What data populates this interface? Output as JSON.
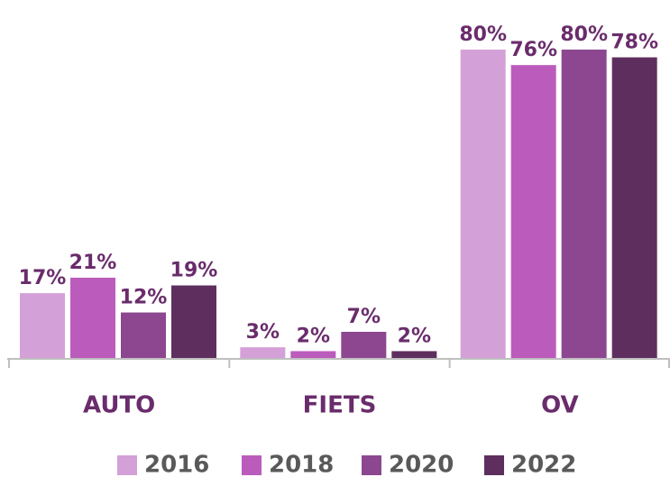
{
  "chart_data": {
    "type": "bar",
    "categories": [
      "AUTO",
      "FIETS",
      "OV"
    ],
    "series": [
      {
        "name": "2016",
        "color": "#d4a0d8",
        "values": [
          17,
          3,
          80
        ],
        "value_labels": [
          "17%",
          "3%",
          "80%"
        ]
      },
      {
        "name": "2018",
        "color": "#bb5cbd",
        "values": [
          21,
          2,
          76
        ],
        "value_labels": [
          "21%",
          "2%",
          "76%"
        ]
      },
      {
        "name": "2020",
        "color": "#8c4790",
        "values": [
          12,
          7,
          80
        ],
        "value_labels": [
          "12%",
          "7%",
          "80%"
        ]
      },
      {
        "name": "2022",
        "color": "#5e2f5e",
        "values": [
          19,
          2,
          78
        ],
        "value_labels": [
          "19%",
          "2%",
          "78%"
        ]
      }
    ],
    "legend": "bottom"
  }
}
